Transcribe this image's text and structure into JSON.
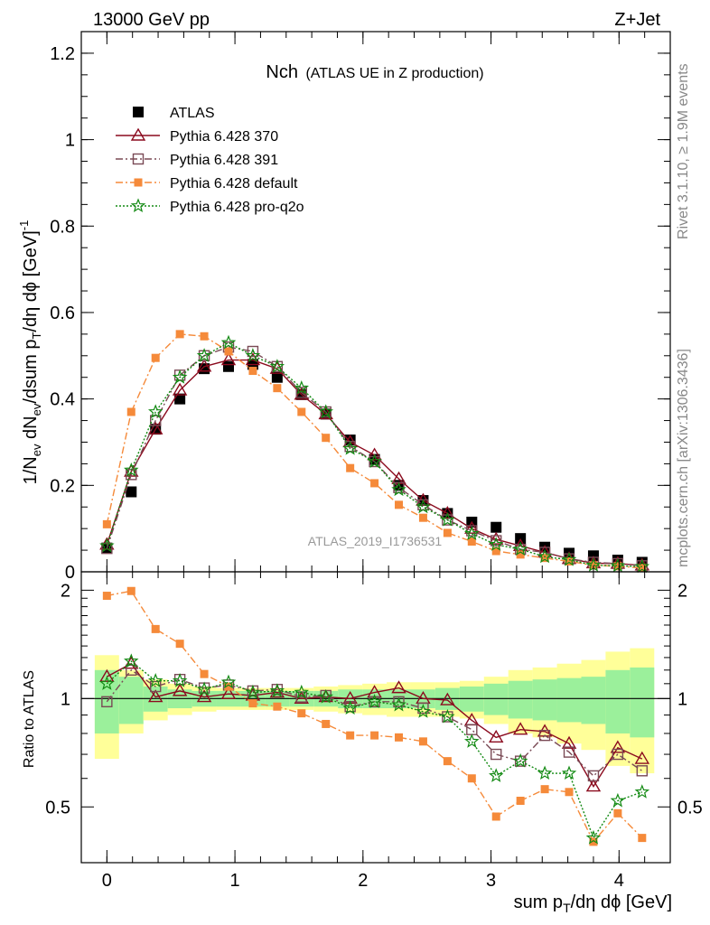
{
  "header": {
    "energy": "13000 GeV pp",
    "process": "Z+Jet"
  },
  "plot_title": {
    "main": "Nch",
    "sub": "(ATLAS UE in Z production)"
  },
  "side_text": {
    "rivet": "Rivet 3.1.10, ≥ 1.9M events",
    "mcplots": "mcplots.cern.ch [arXiv:1306.3436]"
  },
  "watermark": "ATLAS_2019_I1736531",
  "colors": {
    "atlas": "#000000",
    "p370": "#8b0a1e",
    "p391": "#7a4a55",
    "pdefault": "#f58a3a",
    "pq2o": "#138a13",
    "band_inner": "#9bf09b",
    "band_outer": "#ffff99"
  },
  "chart_data": [
    {
      "type": "scatter",
      "panel": "main",
      "title": "Nch (ATLAS UE in Z production)",
      "xlabel": "sum p_T/dη dϕ [GeV]",
      "ylabel": "1/N_ev dN_ev/dsum p_T/dη dϕ [GeV]^-1",
      "xlim": [
        -0.2,
        4.4
      ],
      "ylim": [
        0,
        1.25
      ],
      "yticks": [
        "0",
        "0.2",
        "0.4",
        "0.6",
        "0.8",
        "1",
        "1.2"
      ],
      "yticks_values": [
        0,
        0.2,
        0.4,
        0.6,
        0.8,
        1.0,
        1.2
      ],
      "x": [
        0,
        0.19,
        0.38,
        0.57,
        0.76,
        0.95,
        1.14,
        1.33,
        1.52,
        1.71,
        1.9,
        2.09,
        2.28,
        2.47,
        2.66,
        2.85,
        3.04,
        3.23,
        3.42,
        3.61,
        3.8,
        3.99,
        4.18
      ],
      "series": [
        {
          "name": "ATLAS",
          "values": [
            0.055,
            0.185,
            0.33,
            0.4,
            0.47,
            0.475,
            0.48,
            0.45,
            0.41,
            0.365,
            0.305,
            0.26,
            0.2,
            0.165,
            0.135,
            0.115,
            0.103,
            0.077,
            0.057,
            0.043,
            0.037,
            0.027,
            0.022
          ]
        },
        {
          "name": "Pythia 6.428 370",
          "values": [
            0.063,
            0.232,
            0.33,
            0.42,
            0.475,
            0.49,
            0.49,
            0.47,
            0.41,
            0.365,
            0.3,
            0.27,
            0.215,
            0.165,
            0.135,
            0.1,
            0.075,
            0.06,
            0.045,
            0.03,
            0.02,
            0.019,
            0.015
          ]
        },
        {
          "name": "Pythia 6.428 391",
          "values": [
            0.054,
            0.225,
            0.35,
            0.455,
            0.5,
            0.52,
            0.51,
            0.475,
            0.415,
            0.37,
            0.29,
            0.255,
            0.195,
            0.155,
            0.12,
            0.095,
            0.072,
            0.052,
            0.045,
            0.03,
            0.022,
            0.019,
            0.014
          ]
        },
        {
          "name": "Pythia 6.428 default",
          "values": [
            0.11,
            0.37,
            0.495,
            0.55,
            0.545,
            0.51,
            0.465,
            0.425,
            0.37,
            0.31,
            0.24,
            0.205,
            0.155,
            0.125,
            0.09,
            0.07,
            0.048,
            0.04,
            0.032,
            0.024,
            0.015,
            0.013,
            0.009
          ]
        },
        {
          "name": "Pythia 6.428 pro-q2o",
          "values": [
            0.06,
            0.235,
            0.37,
            0.45,
            0.5,
            0.53,
            0.5,
            0.475,
            0.425,
            0.37,
            0.285,
            0.255,
            0.19,
            0.15,
            0.12,
            0.088,
            0.063,
            0.052,
            0.035,
            0.028,
            0.015,
            0.014,
            0.012
          ]
        }
      ]
    },
    {
      "type": "scatter",
      "panel": "ratio",
      "ylabel": "Ratio to ATLAS",
      "xlabel": "sum p_T/dη dϕ [GeV]",
      "xlim": [
        -0.2,
        4.4
      ],
      "ylim": [
        0.35,
        2.25
      ],
      "xticks": [
        "0",
        "1",
        "2",
        "3",
        "4"
      ],
      "xticks_values": [
        0,
        1,
        2,
        3,
        4
      ],
      "yticks": [
        "0.5",
        "1",
        "2"
      ],
      "yticks_values": [
        0.5,
        1,
        2
      ],
      "x": [
        0,
        0.19,
        0.38,
        0.57,
        0.76,
        0.95,
        1.14,
        1.33,
        1.52,
        1.71,
        1.9,
        2.09,
        2.28,
        2.47,
        2.66,
        2.85,
        3.04,
        3.23,
        3.42,
        3.61,
        3.8,
        3.99,
        4.18
      ],
      "band_inner": [
        0.2,
        0.15,
        0.08,
        0.06,
        0.05,
        0.05,
        0.05,
        0.05,
        0.05,
        0.05,
        0.06,
        0.06,
        0.06,
        0.06,
        0.07,
        0.08,
        0.1,
        0.12,
        0.13,
        0.14,
        0.15,
        0.2,
        0.22
      ],
      "band_outer": [
        0.32,
        0.2,
        0.13,
        0.1,
        0.08,
        0.07,
        0.07,
        0.07,
        0.07,
        0.08,
        0.09,
        0.1,
        0.11,
        0.11,
        0.11,
        0.12,
        0.15,
        0.2,
        0.22,
        0.25,
        0.28,
        0.35,
        0.38
      ],
      "series": [
        {
          "name": "Pythia 6.428 370",
          "values": [
            1.15,
            1.25,
            1.01,
            1.05,
            1.01,
            1.03,
            1.02,
            1.04,
            1.0,
            1.01,
            1.0,
            1.04,
            1.07,
            1.0,
            0.99,
            0.87,
            0.78,
            0.82,
            0.81,
            0.75,
            0.57,
            0.73,
            0.68
          ]
        },
        {
          "name": "Pythia 6.428 391",
          "values": [
            0.98,
            1.2,
            1.08,
            1.13,
            1.07,
            1.09,
            1.05,
            1.06,
            1.01,
            1.02,
            0.95,
            0.98,
            0.98,
            0.94,
            0.89,
            0.82,
            0.7,
            0.67,
            0.79,
            0.71,
            0.61,
            0.7,
            0.63
          ]
        },
        {
          "name": "Pythia 6.428 default",
          "values": [
            1.93,
            1.99,
            1.56,
            1.42,
            1.17,
            1.08,
            0.97,
            0.95,
            0.91,
            0.85,
            0.79,
            0.79,
            0.78,
            0.76,
            0.67,
            0.6,
            0.47,
            0.52,
            0.56,
            0.55,
            0.4,
            0.48,
            0.41
          ]
        },
        {
          "name": "Pythia 6.428 pro-q2o",
          "values": [
            1.1,
            1.27,
            1.12,
            1.12,
            1.06,
            1.11,
            1.04,
            1.05,
            1.04,
            1.01,
            0.94,
            0.98,
            0.96,
            0.92,
            0.89,
            0.76,
            0.61,
            0.67,
            0.62,
            0.62,
            0.41,
            0.52,
            0.55
          ]
        }
      ]
    }
  ]
}
